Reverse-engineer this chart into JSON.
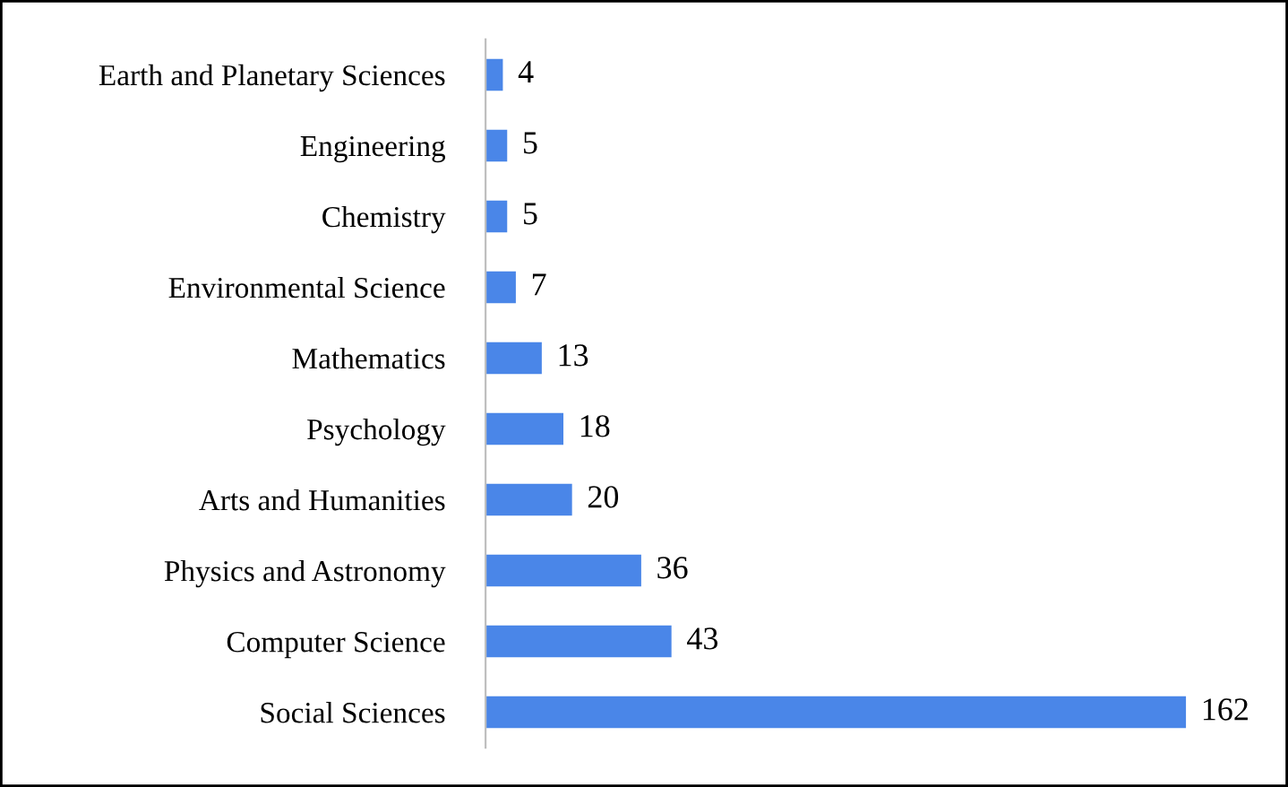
{
  "chart_data": {
    "type": "bar",
    "orientation": "horizontal",
    "categories": [
      "Earth and Planetary Sciences",
      "Engineering",
      "Chemistry",
      "Environmental Science",
      "Mathematics",
      "Psychology",
      "Arts and Humanities",
      "Physics and Astronomy",
      "Computer Science",
      "Social Sciences"
    ],
    "values": [
      4,
      5,
      5,
      7,
      13,
      18,
      20,
      36,
      43,
      162
    ],
    "color": "#4a86e8",
    "data_labels": true,
    "tick_labels": "y",
    "grid": false,
    "legend": false
  }
}
